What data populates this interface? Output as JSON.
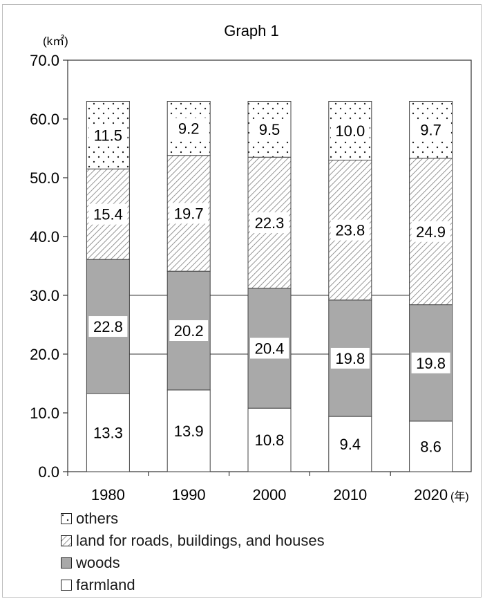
{
  "chart_data": {
    "type": "bar",
    "stacked": true,
    "title": "Graph 1",
    "unit_label": "(k㎡)",
    "x_suffix": "(年)",
    "categories": [
      "1980",
      "1990",
      "2000",
      "2010",
      "2020"
    ],
    "ylim": [
      0,
      70
    ],
    "yticks": [
      "0.0",
      "10.0",
      "20.0",
      "30.0",
      "40.0",
      "50.0",
      "60.0",
      "70.0"
    ],
    "grid": false,
    "legend_position": "bottom-left",
    "series": [
      {
        "name": "farmland",
        "values": [
          13.3,
          13.9,
          10.8,
          9.4,
          8.6
        ],
        "labels": [
          "13.3",
          "13.9",
          "10.8",
          "9.4",
          "8.6"
        ],
        "pattern": "plain"
      },
      {
        "name": "woods",
        "values": [
          22.8,
          20.2,
          20.4,
          19.8,
          19.8
        ],
        "labels": [
          "22.8",
          "20.2",
          "20.4",
          "19.8",
          "19.8"
        ],
        "pattern": "gray"
      },
      {
        "name": "land for roads, buildings, and houses",
        "values": [
          15.4,
          19.7,
          22.3,
          23.8,
          24.9
        ],
        "labels": [
          "15.4",
          "19.7",
          "22.3",
          "23.8",
          "24.9"
        ],
        "pattern": "hatch"
      },
      {
        "name": "others",
        "values": [
          11.5,
          9.2,
          9.5,
          10.0,
          9.7
        ],
        "labels": [
          "11.5",
          "9.2",
          "9.5",
          "10.0",
          "9.7"
        ],
        "pattern": "dots"
      }
    ],
    "legend": [
      "others",
      "land for roads, buildings, and houses",
      "woods",
      "farmland"
    ]
  }
}
